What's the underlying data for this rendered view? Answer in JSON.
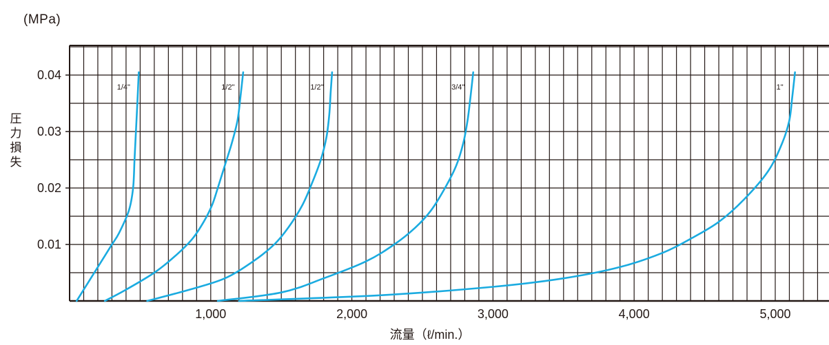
{
  "chart_data": {
    "type": "line",
    "unit_label": "(MPa)",
    "ylabel": "圧力損失",
    "xlabel": "流量（ℓ/min.）",
    "xlim": [
      0,
      5000
    ],
    "ylim": [
      0,
      0.045
    ],
    "grid": true,
    "x_ticks": [
      {
        "value": 1000,
        "label": "1,000"
      },
      {
        "value": 2000,
        "label": "2,000"
      },
      {
        "value": 3000,
        "label": "3,000"
      },
      {
        "value": 4000,
        "label": "4,000"
      },
      {
        "value": 5000,
        "label": "5,000"
      }
    ],
    "y_ticks": [
      {
        "value": 0.01,
        "label": "0.01"
      },
      {
        "value": 0.02,
        "label": "0.02"
      },
      {
        "value": 0.03,
        "label": "0.03"
      },
      {
        "value": 0.04,
        "label": "0.04"
      }
    ],
    "series_color": "#1aabe0",
    "series": [
      {
        "name": "1/4\"",
        "points": [
          [
            50,
            0
          ],
          [
            150,
            0.004
          ],
          [
            250,
            0.008
          ],
          [
            300,
            0.01
          ],
          [
            350,
            0.012
          ],
          [
            420,
            0.016
          ],
          [
            450,
            0.02
          ],
          [
            460,
            0.025
          ],
          [
            470,
            0.03
          ],
          [
            480,
            0.035
          ],
          [
            490,
            0.0405
          ]
        ]
      },
      {
        "name": "1/2\"",
        "points": [
          [
            250,
            0
          ],
          [
            400,
            0.002
          ],
          [
            600,
            0.005
          ],
          [
            750,
            0.008
          ],
          [
            870,
            0.011
          ],
          [
            950,
            0.014
          ],
          [
            1010,
            0.017
          ],
          [
            1050,
            0.02
          ],
          [
            1100,
            0.024
          ],
          [
            1150,
            0.028
          ],
          [
            1190,
            0.032
          ],
          [
            1210,
            0.036
          ],
          [
            1230,
            0.0405
          ]
        ]
      },
      {
        "name": "1/2\"",
        "points": [
          [
            550,
            0
          ],
          [
            850,
            0.002
          ],
          [
            1100,
            0.004
          ],
          [
            1300,
            0.007
          ],
          [
            1450,
            0.01
          ],
          [
            1550,
            0.013
          ],
          [
            1650,
            0.017
          ],
          [
            1720,
            0.021
          ],
          [
            1780,
            0.025
          ],
          [
            1820,
            0.029
          ],
          [
            1840,
            0.033
          ],
          [
            1850,
            0.037
          ],
          [
            1860,
            0.0405
          ]
        ]
      },
      {
        "name": "3/4\"",
        "points": [
          [
            1050,
            0
          ],
          [
            1500,
            0.0015
          ],
          [
            1800,
            0.004
          ],
          [
            2100,
            0.007
          ],
          [
            2300,
            0.01
          ],
          [
            2450,
            0.013
          ],
          [
            2560,
            0.016
          ],
          [
            2660,
            0.02
          ],
          [
            2740,
            0.024
          ],
          [
            2790,
            0.028
          ],
          [
            2820,
            0.032
          ],
          [
            2840,
            0.036
          ],
          [
            2860,
            0.0405
          ]
        ]
      },
      {
        "name": "1\"",
        "points": [
          [
            1200,
            0
          ],
          [
            2200,
            0.001
          ],
          [
            3000,
            0.0025
          ],
          [
            3500,
            0.004
          ],
          [
            3900,
            0.006
          ],
          [
            4200,
            0.0085
          ],
          [
            4400,
            0.011
          ],
          [
            4600,
            0.014
          ],
          [
            4780,
            0.018
          ],
          [
            4950,
            0.023
          ],
          [
            5050,
            0.028
          ],
          [
            5100,
            0.032
          ],
          [
            5120,
            0.036
          ],
          [
            5140,
            0.0405
          ]
        ]
      }
    ]
  }
}
